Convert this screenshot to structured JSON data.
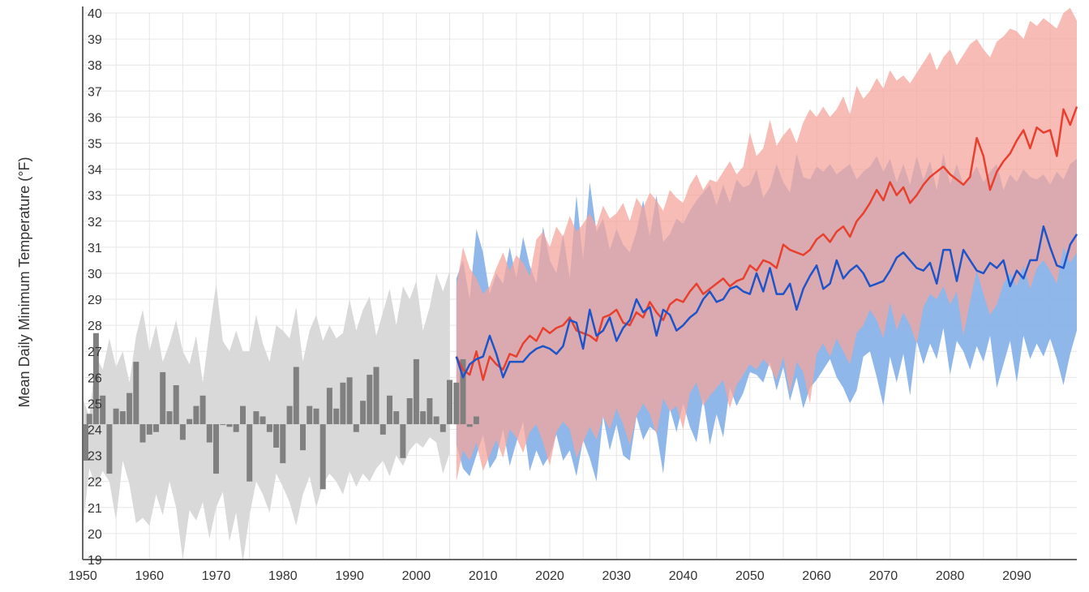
{
  "chart_data": {
    "type": "area",
    "title": "",
    "xlabel": "",
    "ylabel": "Mean Daily Minimum Temperature (°F)",
    "xlim": [
      1950,
      2099
    ],
    "ylim": [
      19,
      40
    ],
    "grid": true,
    "baseline": 24.2,
    "x_ticks": [
      1950,
      1960,
      1970,
      1980,
      1990,
      2000,
      2010,
      2020,
      2030,
      2040,
      2050,
      2060,
      2070,
      2080,
      2090
    ],
    "y_ticks": [
      19,
      20,
      21,
      22,
      23,
      24,
      25,
      26,
      27,
      28,
      29,
      30,
      31,
      32,
      33,
      34,
      35,
      36,
      37,
      38,
      39,
      40
    ],
    "colors": {
      "historical_range": "#d9d9d9",
      "observed_bar": "#808080",
      "higher_range": "#f4a59c",
      "lower_range": "#89b3e8",
      "higher_line": "#e8402f",
      "lower_line": "#1f54c9",
      "grid": "#e6e6e6",
      "axis": "#666666"
    },
    "historical_range": {
      "x": [
        1950,
        1951,
        1952,
        1953,
        1954,
        1955,
        1956,
        1957,
        1958,
        1959,
        1960,
        1961,
        1962,
        1963,
        1964,
        1965,
        1966,
        1967,
        1968,
        1969,
        1970,
        1971,
        1972,
        1973,
        1974,
        1975,
        1976,
        1977,
        1978,
        1979,
        1980,
        1981,
        1982,
        1983,
        1984,
        1985,
        1986,
        1987,
        1988,
        1989,
        1990,
        1991,
        1992,
        1993,
        1994,
        1995,
        1996,
        1997,
        1998,
        1999,
        2000,
        2001,
        2002,
        2003,
        2004,
        2005
      ],
      "low": [
        20.2,
        22.5,
        21.8,
        22.4,
        22.0,
        20.5,
        22.8,
        21.9,
        20.4,
        20.6,
        20.3,
        21.5,
        20.7,
        22.0,
        21.0,
        19.0,
        20.9,
        20.5,
        21.2,
        19.8,
        21.0,
        21.6,
        19.7,
        20.8,
        18.9,
        20.7,
        22.0,
        21.5,
        20.8,
        22.3,
        21.8,
        21.2,
        20.3,
        21.5,
        22.2,
        21.0,
        21.9,
        22.3,
        22.0,
        21.5,
        22.4,
        21.8,
        22.3,
        22.0,
        22.5,
        22.8,
        22.2,
        23.0,
        22.6,
        23.2,
        23.5,
        23.3,
        23.7,
        23.5,
        22.3,
        23.1
      ],
      "high": [
        25.2,
        24.5,
        26.8,
        26.3,
        27.5,
        26.4,
        27.0,
        25.8,
        27.6,
        28.6,
        27.0,
        28.0,
        26.6,
        27.3,
        28.2,
        27.0,
        26.5,
        27.6,
        25.8,
        27.8,
        29.6,
        27.4,
        27.0,
        27.8,
        27.0,
        27.0,
        28.4,
        27.3,
        26.6,
        28.0,
        27.8,
        27.5,
        28.7,
        26.6,
        27.8,
        28.4,
        27.4,
        28.0,
        27.5,
        27.7,
        29.0,
        27.8,
        28.6,
        29.1,
        27.6,
        28.5,
        29.4,
        28.0,
        29.5,
        29.0,
        29.7,
        27.8,
        28.7,
        30.0,
        29.3,
        30.1
      ]
    },
    "observed": {
      "x": [
        1950,
        1951,
        1952,
        1953,
        1954,
        1955,
        1956,
        1957,
        1958,
        1959,
        1960,
        1961,
        1962,
        1963,
        1964,
        1965,
        1966,
        1967,
        1968,
        1969,
        1970,
        1971,
        1972,
        1973,
        1974,
        1975,
        1976,
        1977,
        1978,
        1979,
        1980,
        1981,
        1982,
        1983,
        1984,
        1985,
        1986,
        1987,
        1988,
        1989,
        1990,
        1991,
        1992,
        1993,
        1994,
        1995,
        1996,
        1997,
        1998,
        1999,
        2000,
        2001,
        2002,
        2003,
        2004,
        2005,
        2006,
        2007,
        2008,
        2009
      ],
      "values": [
        22.8,
        24.6,
        27.7,
        25.3,
        22.3,
        24.8,
        24.7,
        25.4,
        26.6,
        23.5,
        23.8,
        23.9,
        26.2,
        24.7,
        25.7,
        23.6,
        24.4,
        24.9,
        25.3,
        23.5,
        22.3,
        24.2,
        24.1,
        23.9,
        24.9,
        22.0,
        24.7,
        24.5,
        23.9,
        23.3,
        22.7,
        24.9,
        26.4,
        23.2,
        24.9,
        24.8,
        21.7,
        25.6,
        24.8,
        25.8,
        26.0,
        23.9,
        25.1,
        26.1,
        26.4,
        23.8,
        25.3,
        24.7,
        22.9,
        25.2,
        26.7,
        24.7,
        25.2,
        24.5,
        23.9,
        25.9,
        25.8,
        26.7,
        24.1,
        24.5
      ]
    },
    "series": [
      {
        "key": "higher",
        "x": [
          2006,
          2007,
          2008,
          2009,
          2010,
          2011,
          2012,
          2013,
          2014,
          2015,
          2016,
          2017,
          2018,
          2019,
          2020,
          2021,
          2022,
          2023,
          2024,
          2025,
          2026,
          2027,
          2028,
          2029,
          2030,
          2031,
          2032,
          2033,
          2034,
          2035,
          2036,
          2037,
          2038,
          2039,
          2040,
          2041,
          2042,
          2043,
          2044,
          2045,
          2046,
          2047,
          2048,
          2049,
          2050,
          2051,
          2052,
          2053,
          2054,
          2055,
          2056,
          2057,
          2058,
          2059,
          2060,
          2061,
          2062,
          2063,
          2064,
          2065,
          2066,
          2067,
          2068,
          2069,
          2070,
          2071,
          2072,
          2073,
          2074,
          2075,
          2076,
          2077,
          2078,
          2079,
          2080,
          2081,
          2082,
          2083,
          2084,
          2085,
          2086,
          2087,
          2088,
          2089,
          2090,
          2091,
          2092,
          2093,
          2094,
          2095,
          2096,
          2097,
          2098,
          2099
        ],
        "values": [
          26.8,
          26.3,
          26.1,
          27.0,
          25.9,
          26.8,
          26.5,
          26.3,
          26.9,
          26.8,
          27.3,
          27.6,
          27.4,
          27.9,
          27.7,
          27.9,
          28.0,
          28.3,
          27.8,
          27.7,
          27.6,
          27.4,
          28.3,
          28.4,
          28.6,
          28.1,
          28.0,
          28.5,
          28.3,
          28.9,
          28.5,
          28.2,
          28.8,
          29.0,
          28.9,
          29.3,
          29.6,
          29.2,
          29.4,
          29.6,
          29.8,
          29.5,
          29.7,
          29.8,
          30.3,
          30.1,
          30.5,
          30.4,
          30.2,
          31.1,
          30.9,
          30.8,
          30.7,
          30.9,
          31.3,
          31.5,
          31.2,
          31.6,
          31.8,
          31.4,
          32.0,
          32.3,
          32.7,
          33.2,
          32.8,
          33.5,
          33.0,
          33.3,
          32.7,
          33.0,
          33.4,
          33.7,
          33.9,
          34.1,
          33.8,
          33.6,
          33.4,
          33.7,
          35.2,
          34.5,
          33.2,
          33.9,
          34.3,
          34.6,
          35.1,
          35.5,
          34.8,
          35.6,
          35.4,
          35.5,
          34.5,
          36.3,
          35.7,
          36.4
        ],
        "low": [
          22.0,
          23.2,
          22.8,
          23.5,
          22.4,
          23.0,
          23.6,
          22.9,
          24.0,
          23.7,
          23.1,
          23.9,
          24.2,
          23.5,
          22.6,
          23.9,
          24.3,
          24.0,
          22.9,
          23.5,
          24.1,
          23.6,
          24.5,
          24.0,
          24.8,
          24.2,
          23.4,
          24.5,
          25.0,
          24.6,
          23.8,
          25.2,
          24.7,
          24.9,
          24.0,
          25.4,
          25.8,
          24.9,
          25.3,
          25.6,
          25.9,
          24.8,
          25.7,
          26.1,
          26.5,
          26.3,
          26.7,
          26.4,
          25.9,
          26.8,
          25.4,
          26.6,
          26.2,
          25.0,
          26.9,
          27.3,
          26.8,
          27.5,
          27.0,
          26.5,
          27.7,
          28.0,
          28.6,
          28.2,
          27.5,
          28.9,
          27.8,
          28.5,
          28.0,
          27.3,
          28.7,
          29.2,
          29.0,
          29.5,
          28.8,
          29.3,
          27.6,
          28.9,
          30.1,
          29.2,
          28.4,
          28.8,
          29.6,
          30.0,
          29.5,
          30.3,
          29.4,
          30.2,
          30.5,
          30.1,
          29.6,
          31.0,
          30.4,
          30.8
        ],
        "high": [
          29.5,
          31.0,
          30.2,
          29.8,
          29.2,
          29.5,
          30.2,
          30.8,
          30.1,
          30.7,
          30.4,
          29.9,
          31.3,
          31.6,
          31.0,
          31.8,
          31.4,
          32.2,
          31.6,
          31.9,
          32.3,
          31.8,
          32.6,
          32.1,
          32.3,
          32.7,
          32.0,
          32.9,
          32.5,
          33.1,
          32.8,
          32.4,
          33.2,
          32.9,
          32.7,
          33.4,
          33.8,
          33.2,
          33.6,
          33.5,
          33.9,
          34.3,
          33.8,
          34.1,
          35.4,
          34.5,
          34.8,
          35.9,
          34.9,
          35.3,
          35.6,
          35.0,
          35.8,
          36.3,
          36.0,
          36.4,
          36.0,
          36.3,
          36.8,
          36.1,
          37.2,
          36.7,
          37.0,
          37.5,
          37.1,
          37.8,
          37.4,
          37.6,
          37.3,
          37.7,
          38.1,
          38.5,
          37.8,
          38.3,
          38.6,
          38.0,
          38.4,
          38.8,
          39.0,
          38.6,
          38.3,
          38.9,
          39.1,
          39.4,
          39.3,
          39.0,
          39.7,
          39.5,
          39.8,
          39.6,
          39.4,
          40.0,
          40.2,
          39.7
        ]
      },
      {
        "key": "lower",
        "x": [
          2006,
          2007,
          2008,
          2009,
          2010,
          2011,
          2012,
          2013,
          2014,
          2015,
          2016,
          2017,
          2018,
          2019,
          2020,
          2021,
          2022,
          2023,
          2024,
          2025,
          2026,
          2027,
          2028,
          2029,
          2030,
          2031,
          2032,
          2033,
          2034,
          2035,
          2036,
          2037,
          2038,
          2039,
          2040,
          2041,
          2042,
          2043,
          2044,
          2045,
          2046,
          2047,
          2048,
          2049,
          2050,
          2051,
          2052,
          2053,
          2054,
          2055,
          2056,
          2057,
          2058,
          2059,
          2060,
          2061,
          2062,
          2063,
          2064,
          2065,
          2066,
          2067,
          2068,
          2069,
          2070,
          2071,
          2072,
          2073,
          2074,
          2075,
          2076,
          2077,
          2078,
          2079,
          2080,
          2081,
          2082,
          2083,
          2084,
          2085,
          2086,
          2087,
          2088,
          2089,
          2090,
          2091,
          2092,
          2093,
          2094,
          2095,
          2096,
          2097,
          2098,
          2099
        ],
        "values": [
          26.8,
          26.0,
          26.5,
          26.7,
          26.8,
          27.6,
          26.9,
          26.0,
          26.6,
          26.6,
          26.6,
          26.9,
          27.1,
          27.2,
          27.1,
          26.9,
          27.2,
          28.2,
          28.1,
          27.1,
          28.6,
          27.6,
          27.8,
          28.3,
          27.4,
          27.9,
          28.2,
          29.0,
          28.5,
          28.7,
          27.6,
          28.6,
          28.4,
          27.8,
          28.0,
          28.3,
          28.5,
          29.0,
          29.3,
          28.9,
          29.0,
          29.4,
          29.5,
          29.3,
          29.2,
          30.0,
          29.3,
          30.2,
          29.2,
          29.2,
          29.6,
          28.6,
          29.4,
          29.9,
          30.3,
          29.4,
          29.6,
          30.5,
          29.8,
          30.1,
          30.3,
          30.0,
          29.5,
          29.6,
          29.7,
          30.1,
          30.6,
          30.8,
          30.5,
          30.2,
          30.1,
          30.4,
          29.6,
          30.9,
          30.9,
          29.7,
          30.9,
          30.5,
          30.1,
          30.0,
          30.4,
          30.2,
          30.5,
          29.5,
          30.1,
          29.8,
          30.5,
          30.5,
          31.8,
          31.0,
          30.3,
          30.2,
          31.1,
          31.5
        ],
        "low": [
          23.4,
          22.5,
          22.2,
          23.0,
          23.8,
          22.5,
          22.9,
          24.0,
          22.6,
          23.5,
          24.3,
          22.4,
          23.2,
          22.6,
          23.0,
          23.8,
          22.8,
          23.2,
          22.2,
          23.6,
          22.9,
          22.0,
          24.5,
          23.2,
          24.2,
          23.0,
          22.8,
          24.5,
          23.6,
          24.1,
          23.9,
          22.3,
          24.8,
          23.9,
          25.0,
          24.1,
          23.5,
          25.2,
          23.4,
          24.6,
          23.7,
          25.6,
          24.9,
          25.4,
          26.2,
          26.1,
          25.8,
          26.6,
          25.5,
          26.4,
          25.1,
          26.0,
          24.8,
          25.6,
          25.9,
          26.3,
          26.7,
          26.0,
          25.6,
          25.0,
          25.5,
          26.8,
          27.0,
          26.0,
          24.9,
          26.8,
          25.8,
          26.9,
          25.3,
          27.4,
          26.5,
          27.3,
          26.7,
          27.9,
          26.1,
          27.4,
          27.0,
          26.3,
          27.2,
          26.6,
          27.6,
          25.6,
          26.5,
          27.4,
          25.8,
          27.6,
          26.7,
          27.3,
          26.8,
          27.5,
          26.7,
          25.7,
          26.9,
          27.8
        ],
        "high": [
          29.8,
          30.5,
          29.0,
          31.7,
          30.8,
          29.2,
          30.0,
          29.6,
          31.0,
          29.8,
          31.4,
          30.3,
          29.6,
          31.8,
          30.5,
          30.0,
          31.5,
          29.8,
          33.0,
          30.5,
          33.5,
          31.6,
          32.1,
          30.9,
          31.7,
          31.1,
          30.8,
          31.6,
          32.8,
          31.4,
          33.0,
          31.2,
          31.5,
          32.1,
          31.9,
          32.4,
          32.8,
          33.1,
          33.4,
          32.6,
          33.4,
          32.7,
          33.6,
          33.3,
          33.4,
          34.0,
          32.9,
          33.3,
          34.2,
          33.5,
          33.1,
          34.6,
          33.7,
          33.6,
          34.1,
          33.9,
          34.2,
          33.8,
          34.0,
          34.2,
          33.6,
          33.9,
          34.1,
          34.5,
          33.9,
          34.4,
          33.5,
          34.2,
          33.4,
          34.5,
          33.6,
          34.3,
          33.2,
          34.6,
          33.4,
          34.2,
          33.4,
          33.7,
          34.1,
          33.5,
          33.9,
          34.2,
          33.2,
          33.8,
          33.5,
          34.0,
          33.7,
          33.6,
          33.8,
          33.4,
          33.9,
          33.6,
          34.2,
          34.4
        ]
      }
    ]
  }
}
